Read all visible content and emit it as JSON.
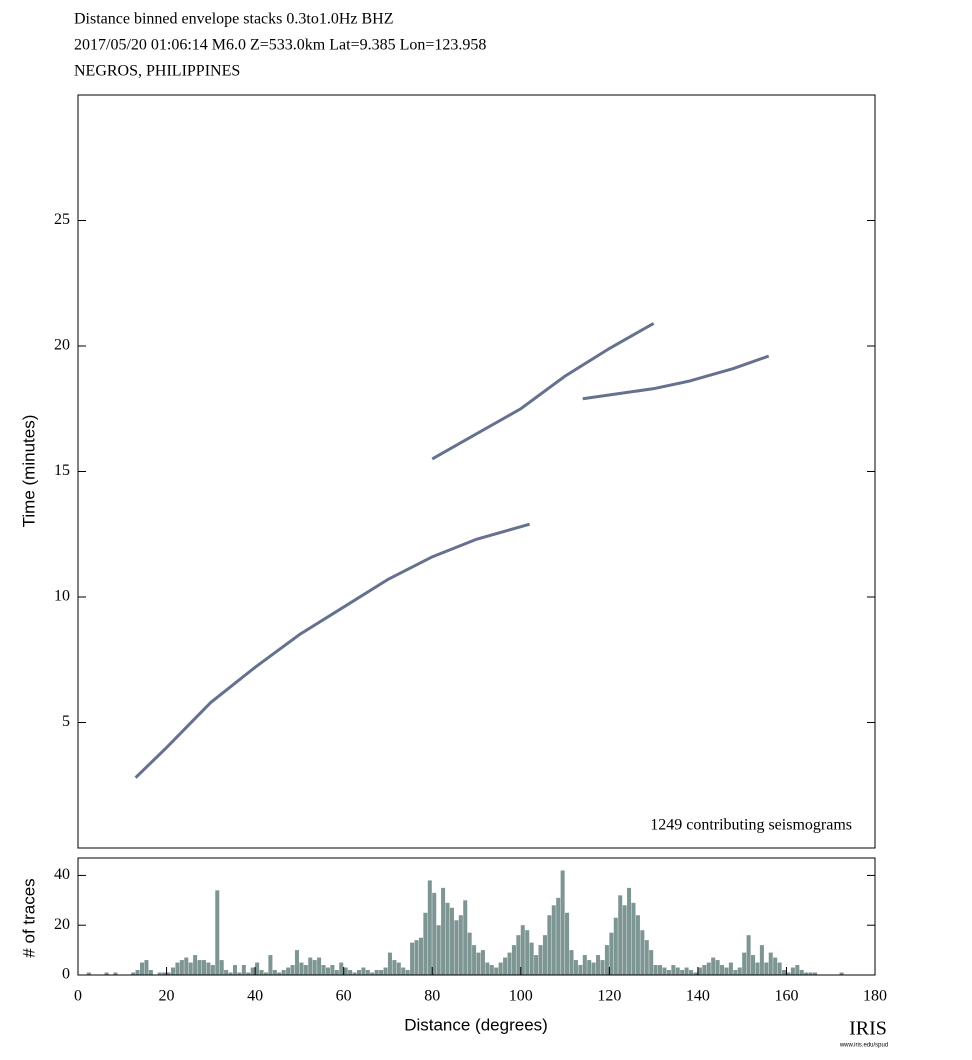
{
  "chart_data": [
    {
      "type": "line",
      "title": [
        "Distance binned envelope stacks  0.3to1.0Hz  BHZ",
        "2017/05/20  01:06:14  M6.0  Z=533.0km Lat=9.385 Lon=123.958",
        "NEGROS, PHILIPPINES"
      ],
      "y_label": "Time (minutes)",
      "annotation": "1249 contributing seismograms",
      "xlim": [
        0,
        180
      ],
      "ylim": [
        0,
        30
      ],
      "yticks": [
        5,
        10,
        15,
        20,
        25
      ],
      "series": [
        {
          "color": "#3f4d73",
          "x": [
            13,
            20,
            30,
            40,
            50,
            60,
            70,
            80,
            90,
            102
          ],
          "values": [
            2.8,
            4,
            5.8,
            7.2,
            8.5,
            9.6,
            10.7,
            11.6,
            12.3,
            12.9
          ]
        },
        {
          "color": "#3f4d73",
          "x": [
            80,
            90,
            100,
            110,
            120,
            130
          ],
          "values": [
            15.5,
            16.5,
            17.5,
            18.8,
            19.9,
            20.9
          ]
        },
        {
          "color": "#3f4d73",
          "x": [
            114,
            130,
            138,
            148,
            156
          ],
          "values": [
            17.9,
            18.3,
            18.6,
            19.1,
            19.6
          ]
        }
      ]
    },
    {
      "type": "histogram",
      "x_label": "Distance (degrees)",
      "y_label": "# of traces",
      "color": "#7d9593",
      "xlim": [
        0,
        180
      ],
      "ylim": [
        0,
        47
      ],
      "xticks": [
        0,
        20,
        40,
        60,
        80,
        100,
        120,
        140,
        160,
        180
      ],
      "yticks": [
        0,
        20,
        40
      ],
      "bins": [
        0,
        1,
        2,
        3,
        4,
        5,
        6,
        7,
        8,
        9,
        10,
        11,
        12,
        13,
        14,
        15,
        16,
        17,
        18,
        19,
        20,
        21,
        22,
        23,
        24,
        25,
        26,
        27,
        28,
        29,
        30,
        31,
        32,
        33,
        34,
        35,
        36,
        37,
        38,
        39,
        40,
        41,
        42,
        43,
        44,
        45,
        46,
        47,
        48,
        49,
        50,
        51,
        52,
        53,
        54,
        55,
        56,
        57,
        58,
        59,
        60,
        61,
        62,
        63,
        64,
        65,
        66,
        67,
        68,
        69,
        70,
        71,
        72,
        73,
        74,
        75,
        76,
        77,
        78,
        79,
        80,
        81,
        82,
        83,
        84,
        85,
        86,
        87,
        88,
        89,
        90,
        91,
        92,
        93,
        94,
        95,
        96,
        97,
        98,
        99,
        100,
        101,
        102,
        103,
        104,
        105,
        106,
        107,
        108,
        109,
        110,
        111,
        112,
        113,
        114,
        115,
        116,
        117,
        118,
        119,
        120,
        121,
        122,
        123,
        124,
        125,
        126,
        127,
        128,
        129,
        130,
        131,
        132,
        133,
        134,
        135,
        136,
        137,
        138,
        139,
        140,
        141,
        142,
        143,
        144,
        145,
        146,
        147,
        148,
        149,
        150,
        151,
        152,
        153,
        154,
        155,
        156,
        157,
        158,
        159,
        160,
        161,
        162,
        163,
        164,
        165,
        166,
        167,
        168,
        169,
        170,
        171,
        172,
        173,
        174,
        175,
        176,
        177,
        178,
        179,
        180
      ],
      "values": [
        0,
        0,
        1,
        0,
        0,
        0,
        1,
        0,
        1,
        0,
        0,
        0,
        1,
        2,
        5,
        6,
        2,
        0,
        1,
        1,
        1,
        3,
        5,
        6,
        7,
        5,
        8,
        6,
        6,
        5,
        4,
        34,
        6,
        2,
        1,
        4,
        1,
        4,
        1,
        3,
        5,
        2,
        1,
        8,
        2,
        1,
        2,
        3,
        4,
        10,
        5,
        4,
        7,
        6,
        7,
        4,
        3,
        4,
        2,
        5,
        3,
        2,
        1,
        2,
        3,
        2,
        1,
        2,
        2,
        3,
        9,
        6,
        5,
        3,
        2,
        13,
        14,
        15,
        25,
        38,
        33,
        20,
        35,
        29,
        27,
        22,
        24,
        30,
        17,
        12,
        9,
        10,
        5,
        4,
        3,
        5,
        7,
        9,
        12,
        16,
        20,
        18,
        13,
        8,
        12,
        16,
        24,
        28,
        31,
        42,
        25,
        10,
        6,
        4,
        8,
        6,
        5,
        8,
        6,
        12,
        17,
        23,
        32,
        28,
        35,
        29,
        24,
        18,
        14,
        10,
        4,
        4,
        3,
        2,
        4,
        3,
        2,
        3,
        2,
        1,
        3,
        4,
        5,
        7,
        6,
        4,
        3,
        5,
        2,
        3,
        9,
        16,
        8,
        5,
        12,
        5,
        9,
        7,
        5,
        2,
        1,
        3,
        4,
        2,
        1,
        1,
        1,
        0,
        0,
        0,
        0,
        0,
        1,
        0,
        0,
        0,
        0,
        0,
        0,
        0
      ]
    }
  ],
  "logo": {
    "name": "IRIS",
    "url": "www.iris.edu/spud"
  }
}
